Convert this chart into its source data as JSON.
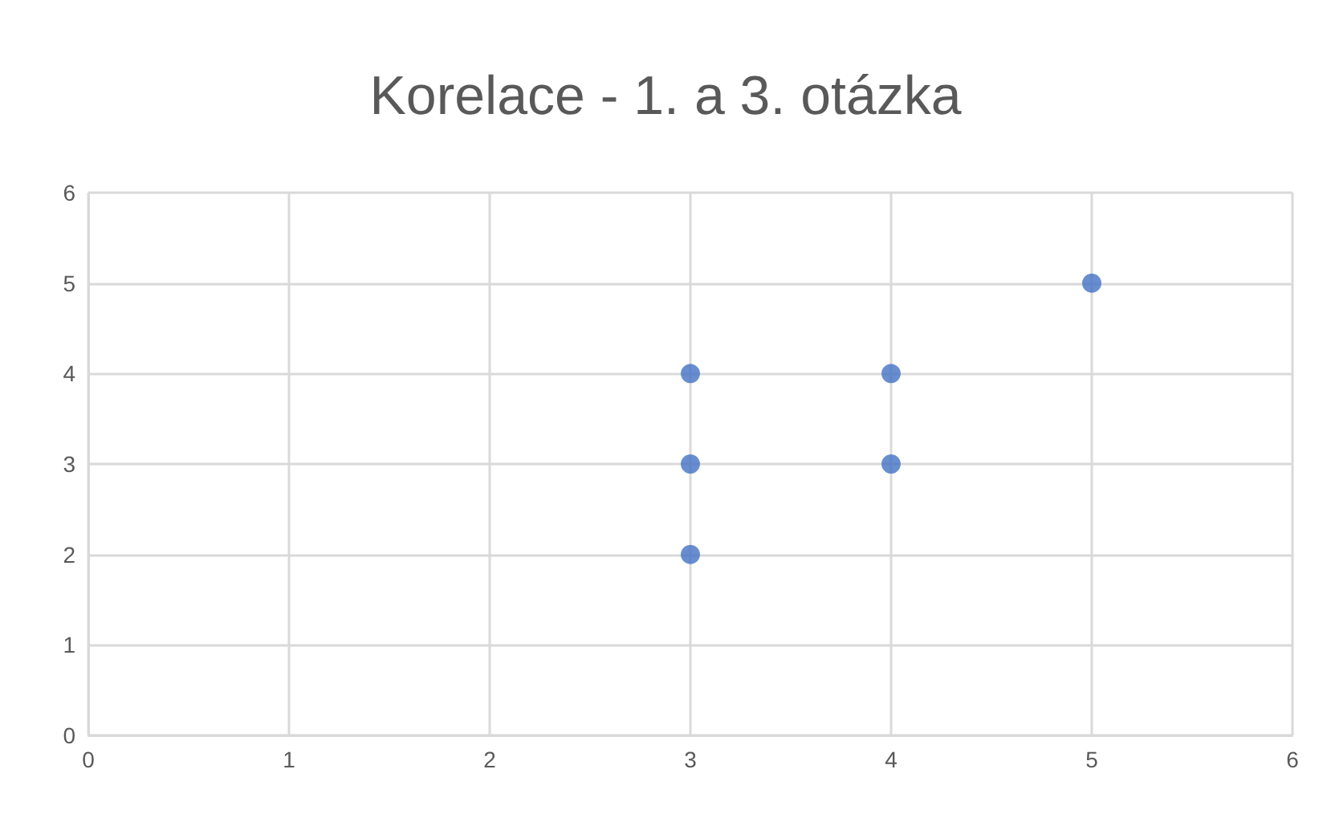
{
  "chart_data": {
    "type": "scatter",
    "title": "Korelace - 1. a 3. otázka",
    "x": [
      3,
      3,
      3,
      4,
      4,
      5
    ],
    "values": [
      4,
      3,
      2,
      4,
      3,
      5
    ],
    "color": "#4472c4",
    "xlim": [
      0,
      6
    ],
    "xticks": [
      0,
      1,
      2,
      3,
      4,
      5,
      6
    ],
    "ylim": [
      0,
      6
    ],
    "yticks": [
      0,
      1,
      2,
      3,
      4,
      5,
      6
    ],
    "grid": true,
    "marker": "circle"
  }
}
